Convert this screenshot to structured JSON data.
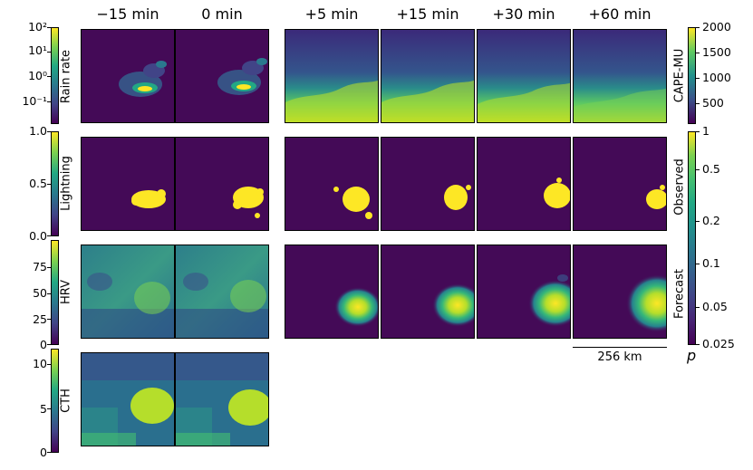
{
  "columns": [
    "−15 min",
    "0 min",
    "+5 min",
    "+15 min",
    "+30 min",
    "+60 min"
  ],
  "rows": {
    "rain_rate": {
      "label": "Rain rate",
      "ticks": [
        "10²",
        "10¹",
        "10⁰",
        "10⁻¹"
      ]
    },
    "lightning": {
      "label": "Lightning",
      "ticks": [
        "1.0",
        "0.5",
        "0.0"
      ]
    },
    "hrv": {
      "label": "HRV",
      "ticks": [
        "75",
        "50",
        "25",
        "0"
      ]
    },
    "cth": {
      "label": "CTH",
      "ticks": [
        "10",
        "5",
        "0"
      ]
    }
  },
  "right_colorbars": {
    "cape": {
      "label": "CAPE-MU",
      "ticks": [
        "2000",
        "1500",
        "1000",
        "500"
      ]
    },
    "probability": {
      "observed_label": "Observed",
      "forecast_label": "Forecast",
      "ticks": [
        "1",
        "0.5",
        "0.2",
        "0.1",
        "0.05",
        "0.025"
      ],
      "symbol": "p"
    }
  },
  "scale_bar": {
    "label": "256 km"
  },
  "colors": {
    "viridis_dark": "#440154",
    "viridis_mid": "#21918c",
    "viridis_light": "#fde725",
    "panel_bg": "#440a57"
  }
}
